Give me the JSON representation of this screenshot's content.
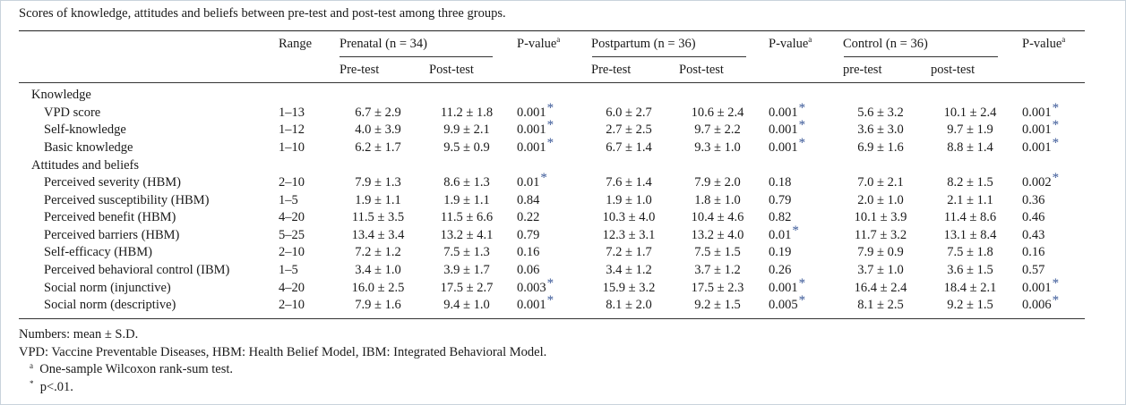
{
  "caption": "Scores of knowledge, attitudes and beliefs between pre-test and post-test among three groups.",
  "header": {
    "range": "Range",
    "groups": [
      {
        "name": "Prenatal (n = 34)",
        "pre": "Pre-test",
        "post": "Post-test"
      },
      {
        "name": "Postpartum (n = 36)",
        "pre": "Pre-test",
        "post": "Post-test"
      },
      {
        "name": "Control (n = 36)",
        "pre": "pre-test",
        "post": "post-test"
      }
    ],
    "pvalue": "P-value",
    "pvalue_sup": "a"
  },
  "sections": [
    {
      "title": "Knowledge",
      "rows": [
        {
          "label": "VPD score",
          "range": "1–13",
          "cells": [
            "6.7 ± 2.9",
            "11.2 ± 1.8",
            "0.001",
            "6.0 ± 2.7",
            "10.6 ± 2.4",
            "0.001",
            "5.6 ± 3.2",
            "10.1 ± 2.4",
            "0.001"
          ],
          "stars": [
            "*",
            "*",
            "*"
          ]
        },
        {
          "label": "Self-knowledge",
          "range": "1–12",
          "cells": [
            "4.0 ± 3.9",
            "9.9 ± 2.1",
            "0.001",
            "2.7 ± 2.5",
            "9.7 ± 2.2",
            "0.001",
            "3.6 ± 3.0",
            "9.7 ± 1.9",
            "0.001"
          ],
          "stars": [
            "*",
            "*",
            "*"
          ]
        },
        {
          "label": "Basic knowledge",
          "range": "1–10",
          "cells": [
            "6.2 ± 1.7",
            "9.5 ± 0.9",
            "0.001",
            "6.7 ± 1.4",
            "9.3 ± 1.0",
            "0.001",
            "6.9 ± 1.6",
            "8.8 ± 1.4",
            "0.001"
          ],
          "stars": [
            "*",
            "*",
            "*"
          ]
        }
      ]
    },
    {
      "title": "Attitudes and beliefs",
      "rows": [
        {
          "label": "Perceived severity (HBM)",
          "range": "2–10",
          "cells": [
            "7.9 ± 1.3",
            "8.6 ± 1.3",
            "0.01",
            "7.6 ± 1.4",
            "7.9 ± 2.0",
            "0.18",
            "7.0 ± 2.1",
            "8.2 ± 1.5",
            "0.002"
          ],
          "stars": [
            "*",
            "",
            "*"
          ]
        },
        {
          "label": "Perceived susceptibility (HBM)",
          "range": "1–5",
          "cells": [
            "1.9 ± 1.1",
            "1.9 ± 1.1",
            "0.84",
            "1.9 ± 1.0",
            "1.8 ± 1.0",
            "0.79",
            "2.0 ± 1.0",
            "2.1 ± 1.1",
            "0.36"
          ],
          "stars": [
            "",
            "",
            ""
          ]
        },
        {
          "label": "Perceived benefit (HBM)",
          "range": "4–20",
          "cells": [
            "11.5 ± 3.5",
            "11.5 ± 6.6",
            "0.22",
            "10.3 ± 4.0",
            "10.4 ± 4.6",
            "0.82",
            "10.1 ± 3.9",
            "11.4 ± 8.6",
            "0.46"
          ],
          "stars": [
            "",
            "",
            ""
          ]
        },
        {
          "label": "Perceived barriers (HBM)",
          "range": "5–25",
          "cells": [
            "13.4 ± 3.4",
            "13.2 ± 4.1",
            "0.79",
            "12.3 ± 3.1",
            "13.2 ± 4.0",
            "0.01",
            "11.7 ± 3.2",
            "13.1 ± 8.4",
            "0.43"
          ],
          "stars": [
            "",
            "*",
            ""
          ]
        },
        {
          "label": "Self-efficacy (HBM)",
          "range": "2–10",
          "cells": [
            "7.2 ± 1.2",
            "7.5 ± 1.3",
            "0.16",
            "7.2 ± 1.7",
            "7.5 ± 1.5",
            "0.19",
            "7.9 ± 0.9",
            "7.5 ± 1.8",
            "0.16"
          ],
          "stars": [
            "",
            "",
            ""
          ]
        },
        {
          "label": "Perceived behavioral control (IBM)",
          "range": "1–5",
          "cells": [
            "3.4 ± 1.0",
            "3.9 ± 1.7",
            "0.06",
            "3.4 ± 1.2",
            "3.7 ± 1.2",
            "0.26",
            "3.7 ± 1.0",
            "3.6 ± 1.5",
            "0.57"
          ],
          "stars": [
            "",
            "",
            ""
          ]
        },
        {
          "label": "Social norm (injunctive)",
          "range": "4–20",
          "cells": [
            "16.0 ± 2.5",
            "17.5 ± 2.7",
            "0.003",
            "15.9 ± 3.2",
            "17.5 ± 2.3",
            "0.001",
            "16.4 ± 2.4",
            "18.4 ± 2.1",
            "0.001"
          ],
          "stars": [
            "*",
            "*",
            "*"
          ]
        },
        {
          "label": "Social norm (descriptive)",
          "range": "2–10",
          "cells": [
            "7.9 ± 1.6",
            "9.4 ± 1.0",
            "0.001",
            "8.1 ± 2.0",
            "9.2 ± 1.5",
            "0.005",
            "8.1 ± 2.5",
            "9.2 ± 1.5",
            "0.006"
          ],
          "stars": [
            "*",
            "*",
            "*"
          ]
        }
      ]
    }
  ],
  "notes": {
    "numbers": "Numbers: mean ± S.D.",
    "abbrev": "VPD: Vaccine Preventable Diseases, HBM: Health Belief Model, IBM: Integrated Behavioral Model.",
    "footnote_a_mark": "a",
    "footnote_a": "One-sample Wilcoxon rank-sum test.",
    "footnote_star_mark": "*",
    "footnote_star": "p<.01."
  }
}
